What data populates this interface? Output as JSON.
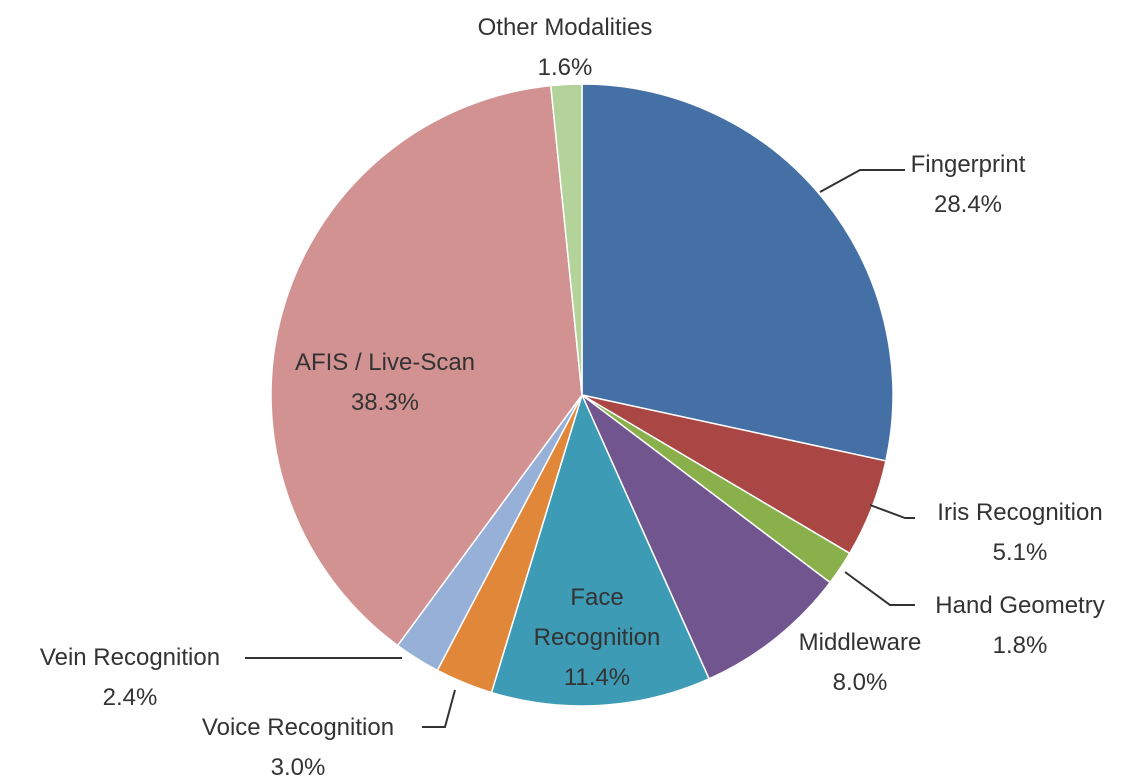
{
  "chart_data": {
    "type": "pie",
    "categories": [
      "Fingerprint",
      "Iris Recognition",
      "Hand Geometry",
      "Middleware",
      "Face Recognition",
      "Voice Recognition",
      "Vein Recognition",
      "AFIS / Live-Scan",
      "Other Modalities"
    ],
    "values": [
      28.4,
      5.1,
      1.8,
      8.0,
      11.4,
      3.0,
      2.4,
      38.3,
      1.6
    ],
    "value_labels": [
      "28.4%",
      "5.1%",
      "1.8%",
      "8.0%",
      "11.4%",
      "3.0%",
      "2.4%",
      "38.3%",
      "1.6%"
    ],
    "colors": [
      "#4470a6",
      "#aa4644",
      "#89b04a",
      "#71558f",
      "#3d9bb5",
      "#e0873a",
      "#97b0d8",
      "#d29292",
      "#b4d39a"
    ]
  }
}
